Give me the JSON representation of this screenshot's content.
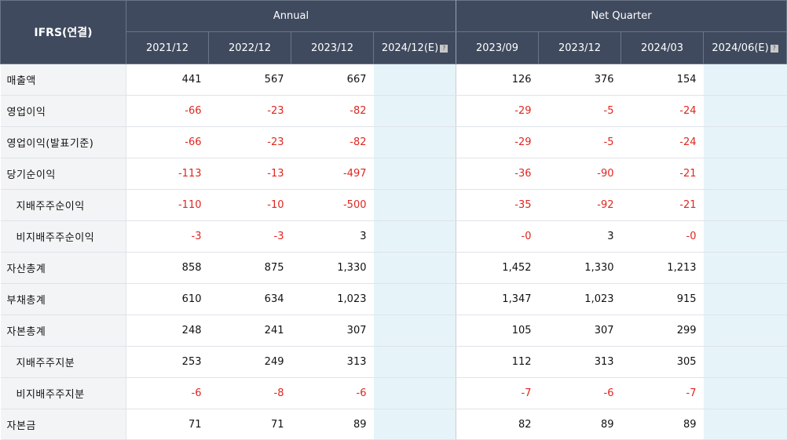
{
  "header": {
    "ifrs_label": "IFRS(연결)",
    "annual_label": "Annual",
    "quarter_label": "Net Quarter",
    "annual_periods": [
      "2021/12",
      "2022/12",
      "2023/12",
      "2024/12(E)"
    ],
    "quarter_periods": [
      "2023/09",
      "2023/12",
      "2024/03",
      "2024/06(E)"
    ],
    "estimate_icon": "?"
  },
  "rows": [
    {
      "label": "매출액",
      "annual": [
        "441",
        "567",
        "667",
        ""
      ],
      "quarter": [
        "126",
        "376",
        "154",
        ""
      ]
    },
    {
      "label": "영업이익",
      "annual": [
        "-66",
        "-23",
        "-82",
        ""
      ],
      "quarter": [
        "-29",
        "-5",
        "-24",
        ""
      ]
    },
    {
      "label": "영업이익(발표기준)",
      "annual": [
        "-66",
        "-23",
        "-82",
        ""
      ],
      "quarter": [
        "-29",
        "-5",
        "-24",
        ""
      ]
    },
    {
      "label": "당기순이익",
      "annual": [
        "-113",
        "-13",
        "-497",
        ""
      ],
      "quarter": [
        "-36",
        "-90",
        "-21",
        ""
      ]
    },
    {
      "label": "지배주주순이익",
      "annual": [
        "-110",
        "-10",
        "-500",
        ""
      ],
      "quarter": [
        "-35",
        "-92",
        "-21",
        ""
      ]
    },
    {
      "label": "비지배주주순이익",
      "annual": [
        "-3",
        "-3",
        "3",
        ""
      ],
      "quarter": [
        "-0",
        "3",
        "-0",
        ""
      ]
    },
    {
      "label": "자산총계",
      "annual": [
        "858",
        "875",
        "1,330",
        ""
      ],
      "quarter": [
        "1,452",
        "1,330",
        "1,213",
        ""
      ]
    },
    {
      "label": "부채총계",
      "annual": [
        "610",
        "634",
        "1,023",
        ""
      ],
      "quarter": [
        "1,347",
        "1,023",
        "915",
        ""
      ]
    },
    {
      "label": "자본총계",
      "annual": [
        "248",
        "241",
        "307",
        ""
      ],
      "quarter": [
        "105",
        "307",
        "299",
        ""
      ]
    },
    {
      "label": "지배주주지분",
      "annual": [
        "253",
        "249",
        "313",
        ""
      ],
      "quarter": [
        "112",
        "313",
        "305",
        ""
      ]
    },
    {
      "label": "비지배주주지분",
      "annual": [
        "-6",
        "-8",
        "-6",
        ""
      ],
      "quarter": [
        "-7",
        "-6",
        "-7",
        ""
      ]
    },
    {
      "label": "자본금",
      "annual": [
        "71",
        "71",
        "89",
        ""
      ],
      "quarter": [
        "82",
        "89",
        "89",
        ""
      ]
    }
  ],
  "colors": {
    "header_bg": "#3f4a5e",
    "label_bg": "#f3f4f6",
    "estimate_bg": "#e6f4f9",
    "negative": "#e0261f"
  }
}
